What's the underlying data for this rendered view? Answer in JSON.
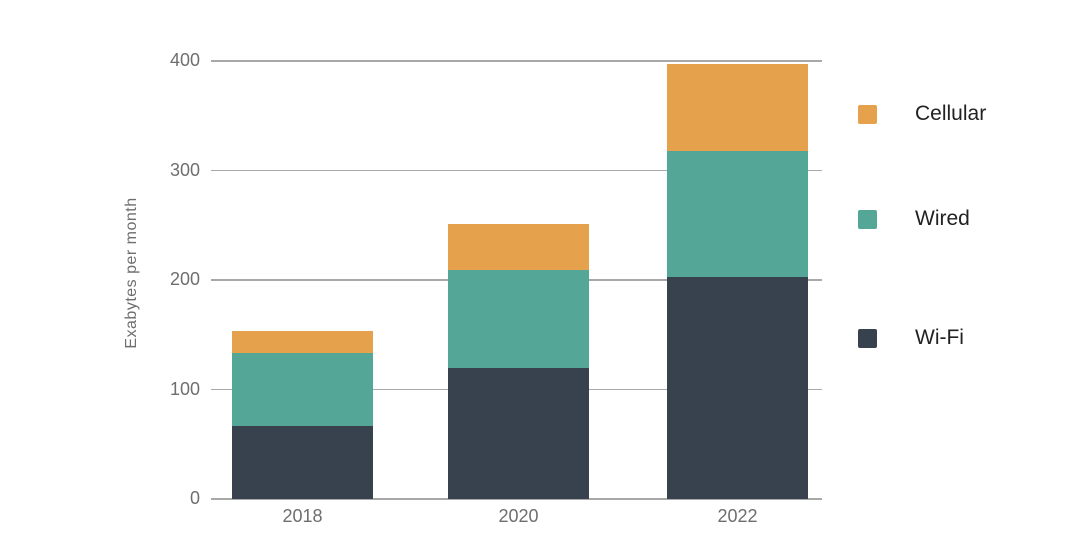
{
  "chart_data": {
    "type": "bar",
    "stacked": true,
    "title": "",
    "xlabel": "",
    "ylabel": "Exabytes per month",
    "categories": [
      "2018",
      "2020",
      "2022"
    ],
    "series": [
      {
        "name": "Wi-Fi",
        "color": "#38424E",
        "values": [
          67,
          120,
          203
        ]
      },
      {
        "name": "Wired",
        "color": "#54A796",
        "values": [
          66,
          89,
          115
        ]
      },
      {
        "name": "Cellular",
        "color": "#E6A14D",
        "values": [
          20,
          42,
          79
        ]
      }
    ],
    "totals": [
      153,
      251,
      397
    ],
    "ylim": [
      0,
      400
    ],
    "yticks": [
      0,
      100,
      200,
      300,
      400
    ],
    "grid": true,
    "gridline_color": "#A8A8A8",
    "tick_label_color": "#6E6E6E",
    "legend_position": "right",
    "legend_text_color": "#222222",
    "legend_order": [
      "Cellular",
      "Wired",
      "Wi-Fi"
    ]
  }
}
